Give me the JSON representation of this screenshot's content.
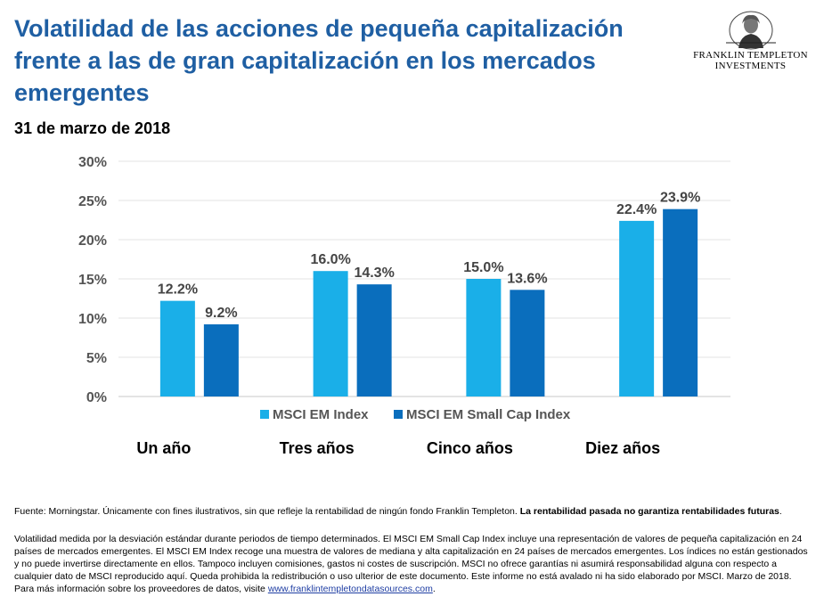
{
  "header": {
    "title": "Volatilidad de las acciones de pequeña capitalización frente a las de gran capitalización en los mercados emergentes",
    "subtitle": "31 de marzo de 2018"
  },
  "logo": {
    "line1": "FRANKLIN TEMPLETON",
    "line2": "INVESTMENTS"
  },
  "chart_data": {
    "type": "bar",
    "categories": [
      "Un año",
      "Tres años",
      "Cinco años",
      "Diez años"
    ],
    "series": [
      {
        "name": "MSCI EM Index",
        "values": [
          12.2,
          16.0,
          15.0,
          22.4
        ],
        "labels": [
          "12.2%",
          "16.0%",
          "15.0%",
          "22.4%"
        ],
        "color": "#1aafe8"
      },
      {
        "name": "MSCI EM Small Cap Index",
        "values": [
          9.2,
          14.3,
          13.6,
          23.9
        ],
        "labels": [
          "9.2%",
          "14.3%",
          "13.6%",
          "23.9%"
        ],
        "color": "#0a6ebd"
      }
    ],
    "yticks": [
      "0%",
      "5%",
      "10%",
      "15%",
      "20%",
      "25%",
      "30%"
    ],
    "ylim": [
      0,
      30
    ],
    "grid": true,
    "legend": "bottom"
  },
  "footer": {
    "source_text": "Fuente: Morningstar. Únicamente con fines ilustrativos, sin que refleje la rentabilidad de ningún fondo Franklin Templeton. ",
    "source_bold": "La rentabilidad pasada no garantiza rentabilidades futuras",
    "source_end": ".",
    "note_text": "Volatilidad medida por la desviación estándar durante periodos de tiempo determinados. El MSCI EM Small Cap Index incluye una representación de valores de pequeña capitalización en 24 países de mercados emergentes. El MSCI EM Index recoge una muestra de valores de mediana y alta capitalización en 24 países de mercados emergentes. Los índices no están gestionados y no puede invertirse directamente en ellos. Tampoco incluyen comisiones, gastos ni costes de suscripción. MSCI no ofrece garantías ni asumirá responsabilidad alguna con respecto a cualquier dato de MSCI reproducido aquí. Queda prohibida la redistribución o uso ulterior de este documento. Este informe no está avalado ni ha sido elaborado por MSCI. Marzo de 2018. Para más información sobre los proveedores de datos, visite ",
    "link": "www.franklintempletondatasources.com",
    "note_end": "."
  }
}
